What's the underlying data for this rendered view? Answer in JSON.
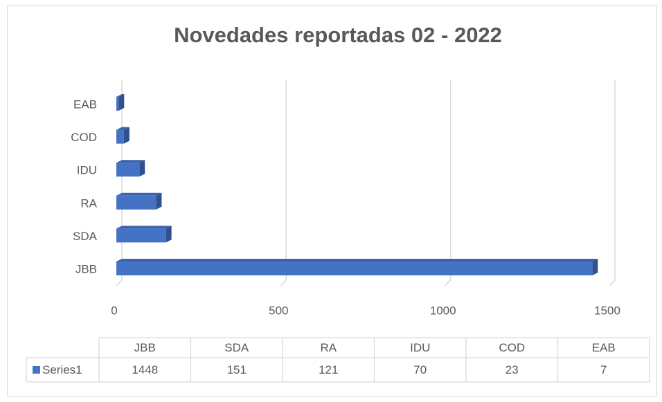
{
  "chart_data": {
    "type": "bar",
    "orientation": "horizontal",
    "title": "Novedades reportadas 02 - 2022",
    "categories": [
      "JBB",
      "SDA",
      "RA",
      "IDU",
      "COD",
      "EAB"
    ],
    "series": [
      {
        "name": "Series1",
        "color": "#4472c4",
        "values": [
          1448,
          151,
          121,
          70,
          23,
          7
        ]
      }
    ],
    "xlim": [
      0,
      1500
    ],
    "xticks": [
      0,
      500,
      1000,
      1500
    ],
    "grid": true,
    "data_table": true
  }
}
